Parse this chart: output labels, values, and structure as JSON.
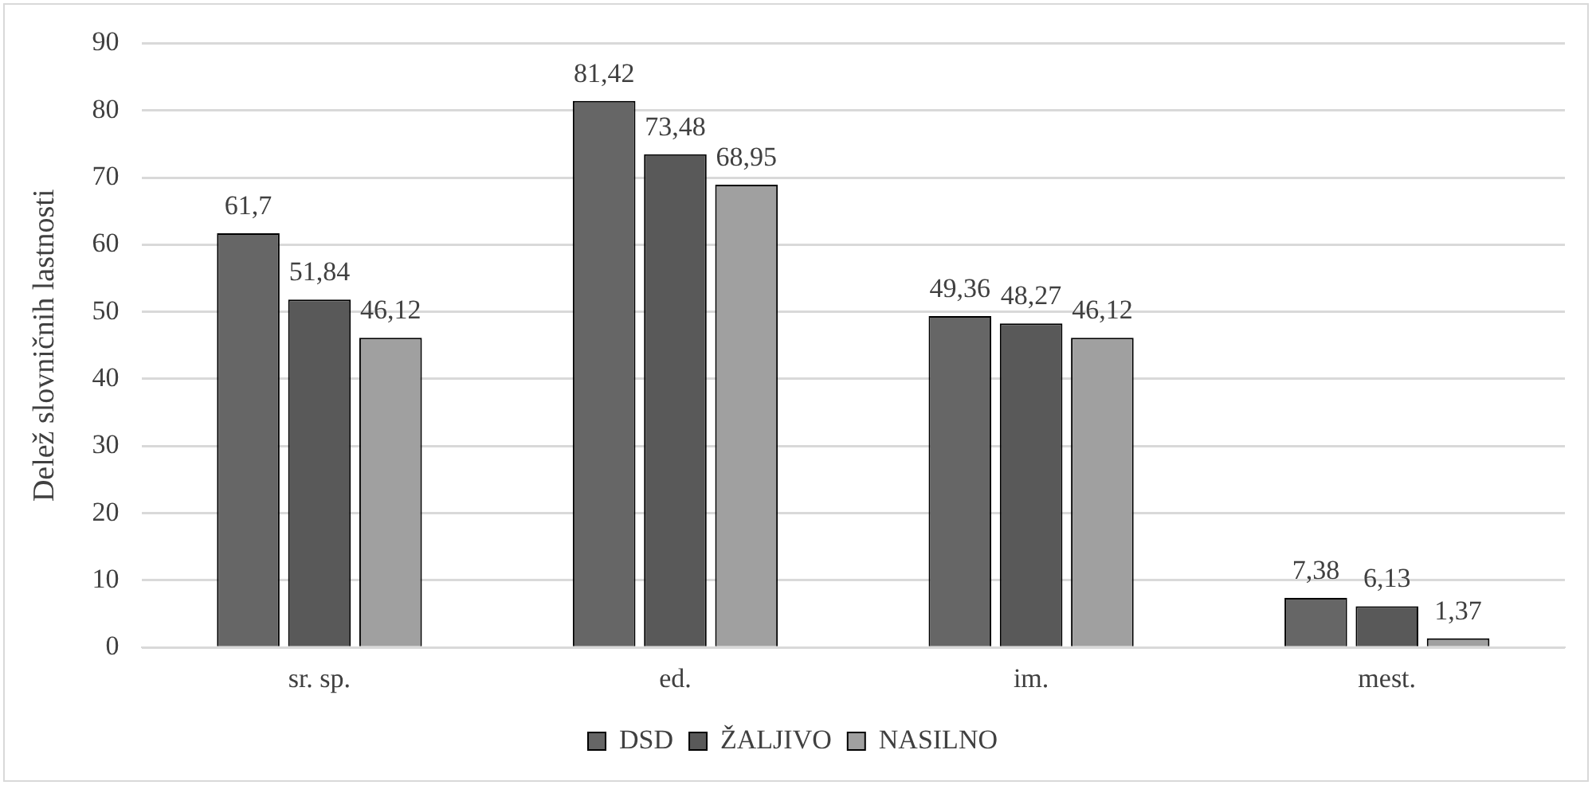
{
  "chart_data": {
    "type": "bar",
    "ylabel": "Delež slovničnih lastnosti",
    "categories": [
      "sr. sp.",
      "ed.",
      "im.",
      "mest."
    ],
    "series": [
      {
        "name": "DSD",
        "color": "#666666",
        "values": [
          61.7,
          81.42,
          49.36,
          7.38
        ],
        "value_labels": [
          "61,7",
          "81,42",
          "49,36",
          "7,38"
        ]
      },
      {
        "name": "ŽALJIVO",
        "color": "#595959",
        "values": [
          51.84,
          73.48,
          48.27,
          6.13
        ],
        "value_labels": [
          "51,84",
          "73,48",
          "48,27",
          "6,13"
        ]
      },
      {
        "name": "NASILNO",
        "color": "#a0a0a0",
        "values": [
          46.12,
          68.95,
          46.12,
          1.37
        ],
        "value_labels": [
          "46,12",
          "68,95",
          "46,12",
          "1,37"
        ]
      }
    ],
    "ylim": [
      0,
      90
    ],
    "yticks": [
      0,
      10,
      20,
      30,
      40,
      50,
      60,
      70,
      80,
      90
    ],
    "grid": "y",
    "legend": "bottom"
  }
}
